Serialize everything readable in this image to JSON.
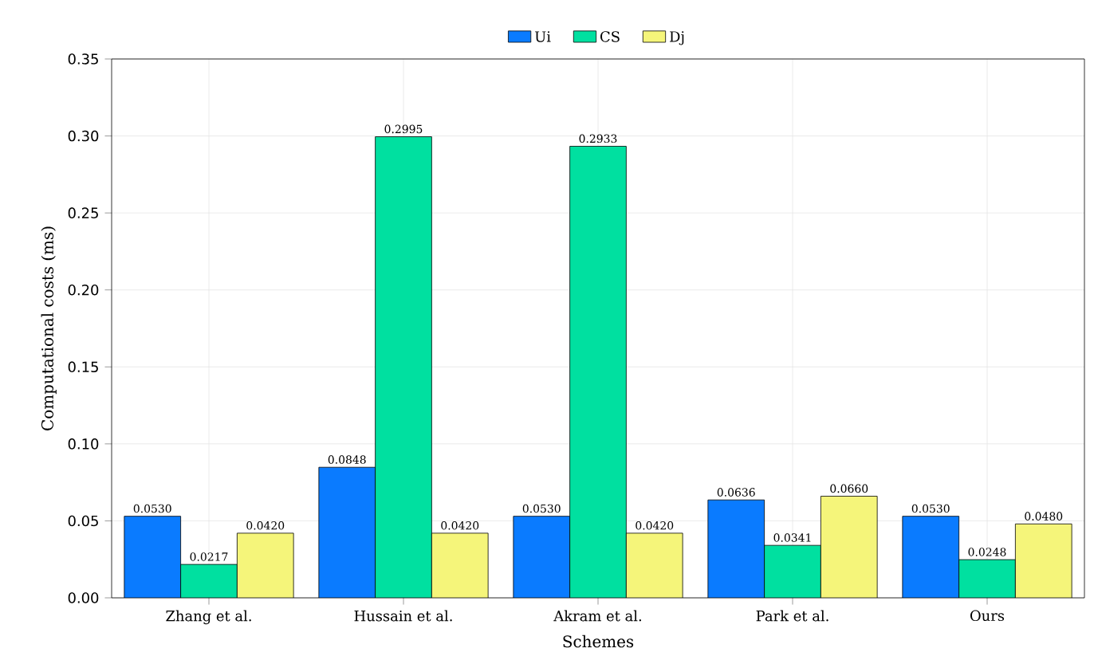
{
  "chart_data": {
    "type": "bar",
    "xlabel": "Schemes",
    "ylabel": "Computational costs (ms)",
    "categories": [
      "Zhang et al.",
      "Hussain et al.",
      "Akram et al.",
      "Park et al.",
      "Ours"
    ],
    "series": [
      {
        "name": "Ui",
        "color": "#0a7bff",
        "values": [
          0.053,
          0.0848,
          0.053,
          0.0636,
          0.053
        ],
        "value_labels": [
          "0.0530",
          "0.0848",
          "0.0530",
          "0.0636",
          "0.0530"
        ]
      },
      {
        "name": "CS",
        "color": "#00e0a0",
        "values": [
          0.0217,
          0.2995,
          0.2933,
          0.0341,
          0.0248
        ],
        "value_labels": [
          "0.0217",
          "0.2995",
          "0.2933",
          "0.0341",
          "0.0248"
        ]
      },
      {
        "name": "Dj",
        "color": "#f5f57a",
        "values": [
          0.042,
          0.042,
          0.042,
          0.066,
          0.048
        ],
        "value_labels": [
          "0.0420",
          "0.0420",
          "0.0420",
          "0.0660",
          "0.0480"
        ]
      }
    ],
    "ylim": [
      0,
      0.35
    ],
    "yticks": [
      {
        "value": 0,
        "label": "0.00"
      },
      {
        "value": 0.05,
        "label": "0.05"
      },
      {
        "value": 0.1,
        "label": "0.10"
      },
      {
        "value": 0.15,
        "label": "0.15"
      },
      {
        "value": 0.2,
        "label": "0.20"
      },
      {
        "value": 0.25,
        "label": "0.25"
      },
      {
        "value": 0.3,
        "label": "0.30"
      },
      {
        "value": 0.35,
        "label": "0.35"
      }
    ],
    "grid": true,
    "legend": "top"
  }
}
